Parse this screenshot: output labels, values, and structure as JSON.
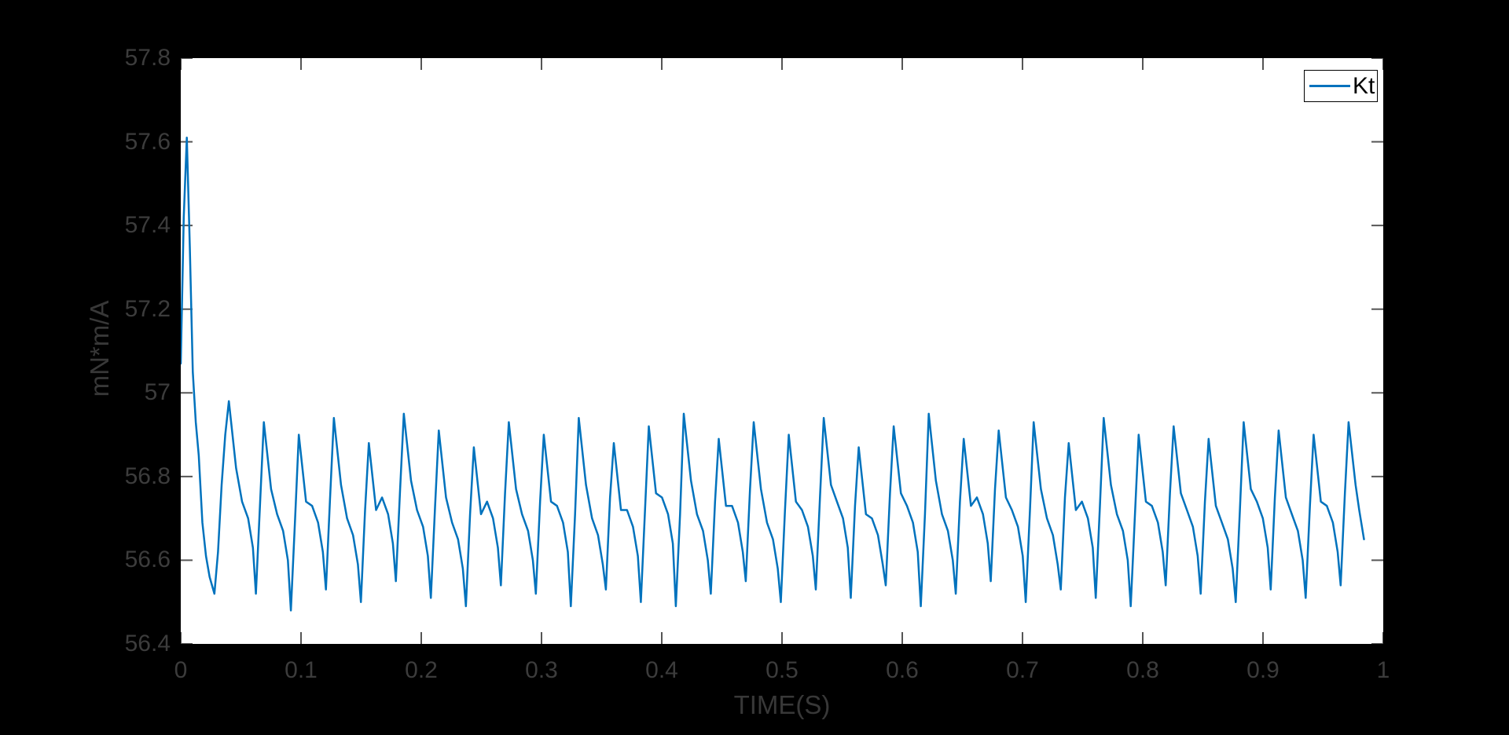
{
  "figure": {
    "background_color": "#000000",
    "plot_background_color": "#ffffff",
    "tick_color": "#555555",
    "tick_label_color": "#3c3c3c",
    "axis_label_color": "#383838"
  },
  "chart_data": {
    "type": "line",
    "title": "",
    "xlabel": "TIME(S)",
    "ylabel": "mN*m/A",
    "xlim": [
      0,
      1
    ],
    "ylim": [
      56.4,
      57.8
    ],
    "xtick_values": [
      0,
      0.1,
      0.2,
      0.3,
      0.4,
      0.5,
      0.6,
      0.7,
      0.8,
      0.9,
      1
    ],
    "xtick_labels": [
      "0",
      "0.1",
      "0.2",
      "0.3",
      "0.4",
      "0.5",
      "0.6",
      "0.7",
      "0.8",
      "0.9",
      "1"
    ],
    "ytick_values": [
      56.4,
      56.6,
      56.8,
      57,
      57.2,
      57.4,
      57.6,
      57.8
    ],
    "ytick_labels": [
      "56.4",
      "56.6",
      "56.8",
      "57",
      "57.2",
      "57.4",
      "57.6",
      "57.8"
    ],
    "grid": false,
    "box": true,
    "legend": {
      "position": "northeast",
      "entries": [
        {
          "label": "Kt",
          "color": "#0072bd"
        }
      ]
    },
    "series": [
      {
        "name": "Kt",
        "color": "#0072bd",
        "line_width": 2.5,
        "transient_points": [
          [
            0.0,
            57.07
          ],
          [
            0.0025,
            57.42
          ],
          [
            0.005,
            57.61
          ],
          [
            0.0075,
            57.35
          ],
          [
            0.01,
            57.05
          ],
          [
            0.0125,
            56.93
          ],
          [
            0.015,
            56.85
          ],
          [
            0.018,
            56.69
          ],
          [
            0.021,
            56.61
          ],
          [
            0.024,
            56.56
          ],
          [
            0.028,
            56.52
          ],
          [
            0.031,
            56.62
          ],
          [
            0.034,
            56.78
          ],
          [
            0.037,
            56.9
          ]
        ],
        "oscillation": {
          "first_peak_t": 0.04,
          "period": 0.0291,
          "cycle_shape_offsets": [
            [
              0.0,
              "peak",
              0.0
            ],
            [
              0.006,
              "peak",
              -0.16
            ],
            [
              0.011,
              "shoulder",
              0.02
            ],
            [
              0.016,
              "shoulder",
              -0.02
            ],
            [
              0.02,
              "shoulder",
              -0.09
            ],
            [
              0.0225,
              "trough",
              0.0
            ],
            [
              0.026,
              "trough",
              0.22
            ]
          ],
          "peak_values": [
            56.98,
            56.93,
            56.9,
            56.94,
            56.88,
            56.95,
            56.91,
            56.87,
            56.93,
            56.9,
            56.94,
            56.88,
            56.92,
            56.95,
            56.89,
            56.93,
            56.9,
            56.94,
            56.87,
            56.92,
            56.95,
            56.89,
            56.91,
            56.93,
            56.88,
            56.94,
            56.9,
            56.92,
            56.89,
            56.93,
            56.91,
            56.9,
            56.93
          ],
          "shoulder_values": [
            56.72,
            56.69,
            56.71,
            56.68,
            56.73,
            56.7,
            56.67,
            56.72,
            56.69,
            56.71,
            56.68,
            56.7,
            56.73,
            56.69,
            56.71,
            56.67,
            56.7,
            56.72,
            56.68,
            56.71,
            56.69,
            56.73,
            56.7,
            56.68,
            56.72,
            56.69,
            56.71,
            56.7,
            56.67,
            56.72,
            56.69,
            56.71,
            56.7
          ],
          "trough_values": [
            56.52,
            56.48,
            56.53,
            56.5,
            56.55,
            56.51,
            56.49,
            56.54,
            56.52,
            56.49,
            56.53,
            56.5,
            56.49,
            56.52,
            56.55,
            56.5,
            56.53,
            56.51,
            56.54,
            56.49,
            56.52,
            56.55,
            56.5,
            56.53,
            56.51,
            56.49,
            56.54,
            56.52,
            56.5,
            56.53,
            56.51,
            56.54,
            56.52
          ]
        },
        "tail_points": [
          [
            0.977,
            56.78
          ],
          [
            0.98,
            56.72
          ],
          [
            0.984,
            56.65
          ]
        ]
      }
    ]
  }
}
